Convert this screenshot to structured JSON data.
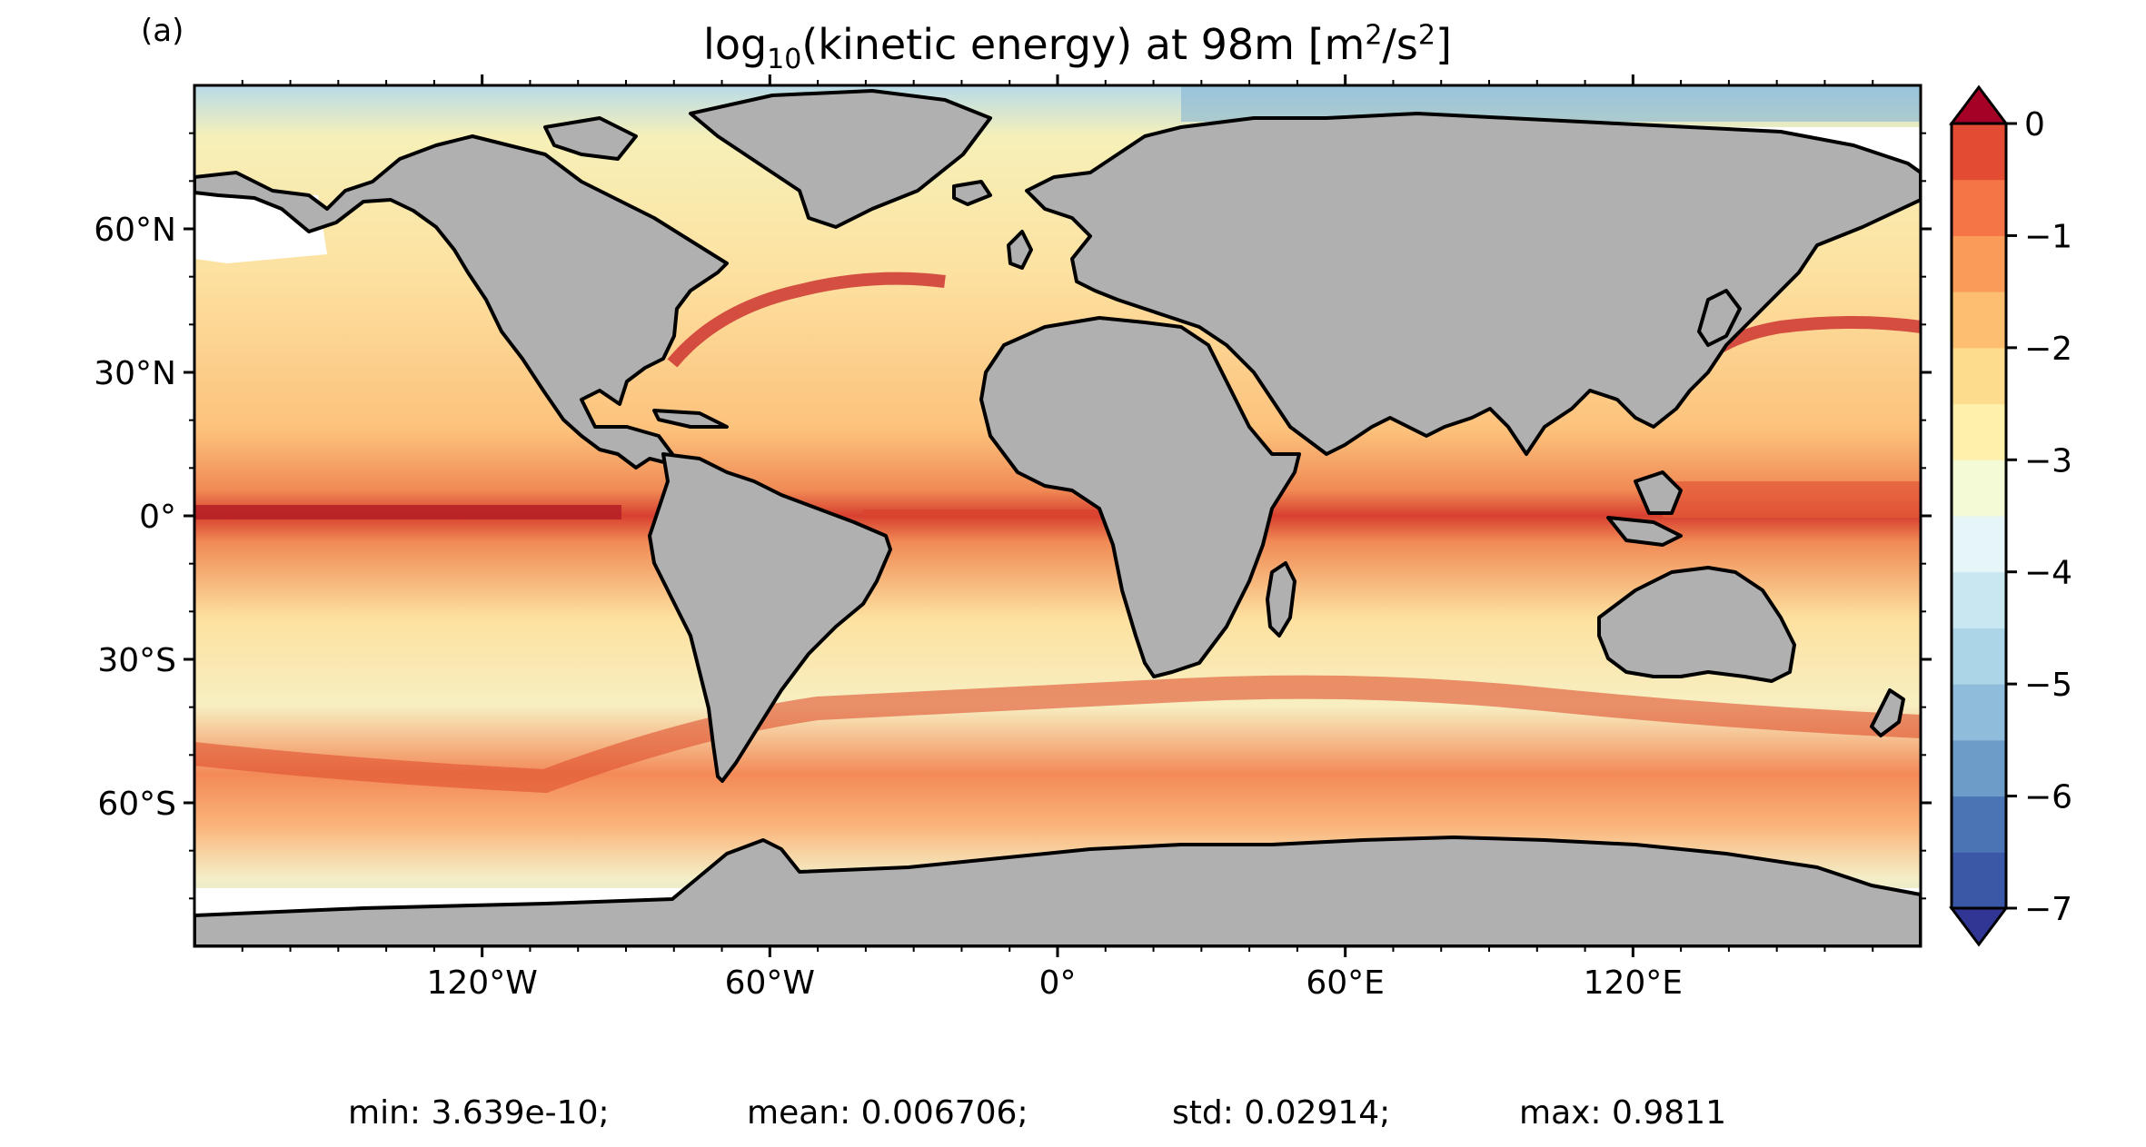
{
  "panel_label": "(a)",
  "title": {
    "prefix": "log",
    "sub": "10",
    "middle": "(kinetic energy) at 98m [m",
    "sup1": "2",
    "mid2": "/s",
    "sup2": "2",
    "suffix": "]"
  },
  "map": {
    "projection": "equirectangular",
    "lon_range": [
      -180,
      180
    ],
    "lat_range": [
      -90,
      90
    ],
    "land_color": "#b0b0b0",
    "coastline_color": "#000000",
    "no_data_color": "#ffffff",
    "lat_ticks": [
      {
        "value": 60,
        "label": "60°N"
      },
      {
        "value": 30,
        "label": "30°N"
      },
      {
        "value": 0,
        "label": "0°"
      },
      {
        "value": -30,
        "label": "30°S"
      },
      {
        "value": -60,
        "label": "60°S"
      }
    ],
    "lon_ticks": [
      {
        "value": -120,
        "label": "120°W"
      },
      {
        "value": -60,
        "label": "60°W"
      },
      {
        "value": 0,
        "label": "0°"
      },
      {
        "value": 60,
        "label": "60°E"
      },
      {
        "value": 120,
        "label": "120°E"
      }
    ]
  },
  "colorbar": {
    "range": [
      -7,
      0
    ],
    "step": 0.5,
    "extend": "both",
    "tick_labels": [
      {
        "value": 0,
        "label": "0"
      },
      {
        "value": -1,
        "label": "−1"
      },
      {
        "value": -2,
        "label": "−2"
      },
      {
        "value": -3,
        "label": "−3"
      },
      {
        "value": -4,
        "label": "−4"
      },
      {
        "value": -5,
        "label": "−5"
      },
      {
        "value": -6,
        "label": "−6"
      },
      {
        "value": -7,
        "label": "−7"
      }
    ],
    "colors": [
      "#313695",
      "#3a58a6",
      "#4a74b4",
      "#6d9cc8",
      "#8fbcdb",
      "#acd5e7",
      "#c9e7f1",
      "#e6f5f8",
      "#f4f9d6",
      "#fff0ab",
      "#fedc8e",
      "#fdbf6f",
      "#fa9b58",
      "#f57546",
      "#e34b33",
      "#cc2428",
      "#a50026"
    ]
  },
  "stats": {
    "min": "min: 3.639e-10;",
    "mean": "mean: 0.006706;",
    "std": "std: 0.02914;",
    "max": "max: 0.9811"
  }
}
